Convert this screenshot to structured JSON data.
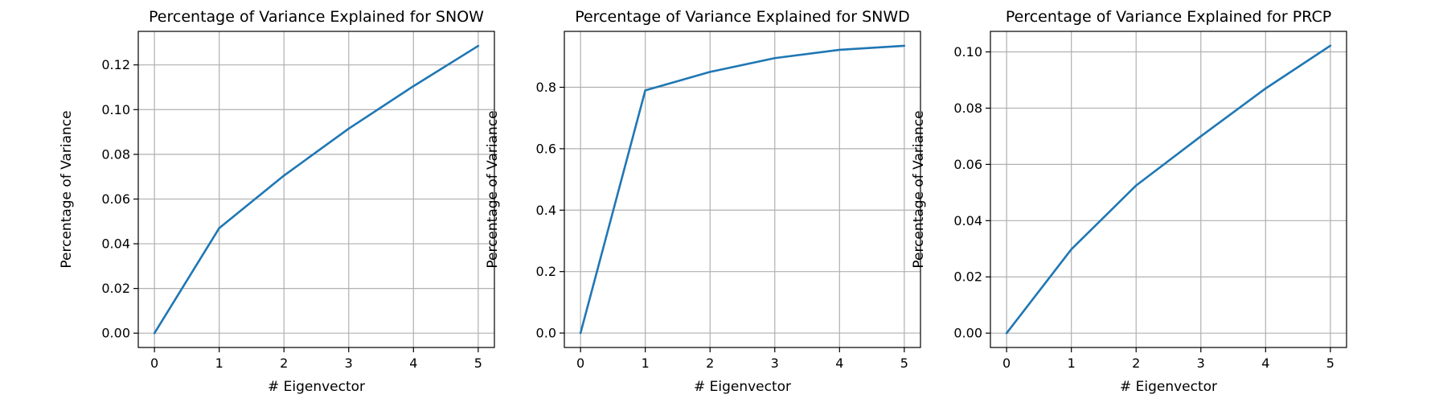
{
  "chart_data": [
    {
      "type": "line",
      "title": "Percentage of Variance Explained for SNOW",
      "xlabel": "# Eigenvector",
      "ylabel": "Percentage of Variance",
      "x": [
        0,
        1,
        2,
        3,
        4,
        5
      ],
      "series": [
        {
          "values": [
            0.0,
            0.047,
            0.0705,
            0.0915,
            0.1105,
            0.1285
          ]
        }
      ],
      "xlim": [
        -0.25,
        5.25
      ],
      "ylim": [
        -0.0064,
        0.135
      ],
      "xticks": [
        0,
        1,
        2,
        3,
        4,
        5
      ],
      "yticks": [
        0.0,
        0.02,
        0.04,
        0.06,
        0.08,
        0.1,
        0.12
      ],
      "ytick_labels": [
        "0.00",
        "0.02",
        "0.04",
        "0.06",
        "0.08",
        "0.10",
        "0.12"
      ],
      "grid": true,
      "color": "#1f77b4"
    },
    {
      "type": "line",
      "title": "Percentage of Variance Explained for SNWD",
      "xlabel": "# Eigenvector",
      "ylabel": "Percentage of Variance",
      "x": [
        0,
        1,
        2,
        3,
        4,
        5
      ],
      "series": [
        {
          "values": [
            0.0,
            0.79,
            0.85,
            0.895,
            0.922,
            0.935
          ]
        }
      ],
      "xlim": [
        -0.25,
        5.25
      ],
      "ylim": [
        -0.047,
        0.982
      ],
      "xticks": [
        0,
        1,
        2,
        3,
        4,
        5
      ],
      "yticks": [
        0.0,
        0.2,
        0.4,
        0.6,
        0.8
      ],
      "ytick_labels": [
        "0.0",
        "0.2",
        "0.4",
        "0.6",
        "0.8"
      ],
      "grid": true,
      "color": "#1f77b4"
    },
    {
      "type": "line",
      "title": "Percentage of Variance Explained for PRCP",
      "xlabel": "# Eigenvector",
      "ylabel": "Percentage of Variance",
      "x": [
        0,
        1,
        2,
        3,
        4,
        5
      ],
      "series": [
        {
          "values": [
            0.0,
            0.0298,
            0.0525,
            0.07,
            0.087,
            0.1022
          ]
        }
      ],
      "xlim": [
        -0.25,
        5.25
      ],
      "ylim": [
        -0.0051,
        0.1073
      ],
      "xticks": [
        0,
        1,
        2,
        3,
        4,
        5
      ],
      "yticks": [
        0.0,
        0.02,
        0.04,
        0.06,
        0.08,
        0.1
      ],
      "ytick_labels": [
        "0.00",
        "0.02",
        "0.04",
        "0.06",
        "0.08",
        "0.10"
      ],
      "grid": true,
      "color": "#1f77b4"
    }
  ]
}
